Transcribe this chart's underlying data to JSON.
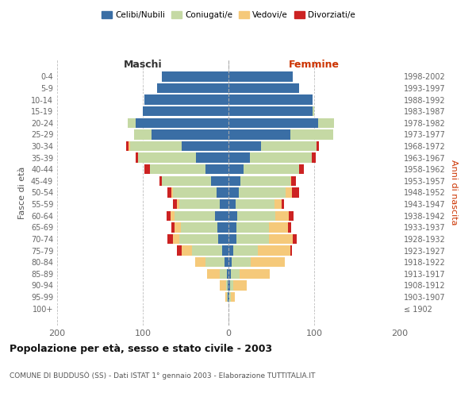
{
  "age_groups": [
    "100+",
    "95-99",
    "90-94",
    "85-89",
    "80-84",
    "75-79",
    "70-74",
    "65-69",
    "60-64",
    "55-59",
    "50-54",
    "45-49",
    "40-44",
    "35-39",
    "30-34",
    "25-29",
    "20-24",
    "15-19",
    "10-14",
    "5-9",
    "0-4"
  ],
  "birth_years": [
    "≤ 1902",
    "1903-1907",
    "1908-1912",
    "1913-1917",
    "1918-1922",
    "1923-1927",
    "1928-1932",
    "1933-1937",
    "1938-1942",
    "1943-1947",
    "1948-1952",
    "1953-1957",
    "1958-1962",
    "1963-1967",
    "1968-1972",
    "1973-1977",
    "1978-1982",
    "1983-1987",
    "1988-1992",
    "1993-1997",
    "1998-2002"
  ],
  "males": {
    "celibi": [
      0,
      1,
      1,
      2,
      5,
      7,
      12,
      13,
      16,
      10,
      14,
      20,
      27,
      38,
      55,
      90,
      108,
      100,
      98,
      83,
      78
    ],
    "coniugati": [
      0,
      1,
      2,
      8,
      22,
      36,
      45,
      43,
      47,
      47,
      51,
      58,
      65,
      68,
      60,
      20,
      10,
      0,
      0,
      0,
      0
    ],
    "vedovi": [
      0,
      2,
      7,
      15,
      12,
      12,
      8,
      7,
      5,
      3,
      2,
      0,
      0,
      0,
      2,
      0,
      0,
      0,
      0,
      0,
      0
    ],
    "divorziati": [
      0,
      0,
      0,
      0,
      0,
      5,
      6,
      4,
      4,
      5,
      4,
      3,
      6,
      2,
      2,
      0,
      0,
      0,
      0,
      0,
      0
    ]
  },
  "females": {
    "nubili": [
      0,
      1,
      2,
      3,
      4,
      6,
      9,
      9,
      10,
      8,
      12,
      14,
      18,
      25,
      38,
      72,
      105,
      98,
      98,
      82,
      75
    ],
    "coniugate": [
      0,
      2,
      4,
      10,
      22,
      28,
      38,
      38,
      45,
      46,
      55,
      58,
      64,
      72,
      65,
      50,
      18,
      2,
      0,
      0,
      0
    ],
    "vedove": [
      0,
      4,
      15,
      35,
      40,
      38,
      28,
      22,
      15,
      8,
      7,
      1,
      0,
      0,
      0,
      0,
      0,
      0,
      0,
      0,
      0
    ],
    "divorziate": [
      0,
      0,
      0,
      0,
      0,
      2,
      5,
      4,
      6,
      3,
      8,
      6,
      6,
      5,
      3,
      0,
      0,
      0,
      0,
      0,
      0
    ]
  },
  "colors": {
    "celibi": "#3A6EA5",
    "coniugati": "#C5D9A4",
    "vedovi": "#F5C97A",
    "divorziati": "#CC2222"
  },
  "xlim": [
    -200,
    200
  ],
  "xticks": [
    -200,
    -100,
    0,
    100,
    200
  ],
  "xticklabels": [
    "200",
    "100",
    "0",
    "100",
    "200"
  ],
  "title": "Popolazione per età, sesso e stato civile - 2003",
  "subtitle": "COMUNE DI BUDDUSÒ (SS) - Dati ISTAT 1° gennaio 2003 - Elaborazione TUTTITALIA.IT",
  "ylabel_left": "Fasce di età",
  "ylabel_right": "Anni di nascita",
  "maschi_label": "Maschi",
  "femmine_label": "Femmine",
  "legend_labels": [
    "Celibi/Nubili",
    "Coniugati/e",
    "Vedovi/e",
    "Divorziati/e"
  ],
  "bg_color": "#FFFFFF",
  "bar_height": 0.85,
  "fig_width": 6.0,
  "fig_height": 5.0,
  "dpi": 100
}
